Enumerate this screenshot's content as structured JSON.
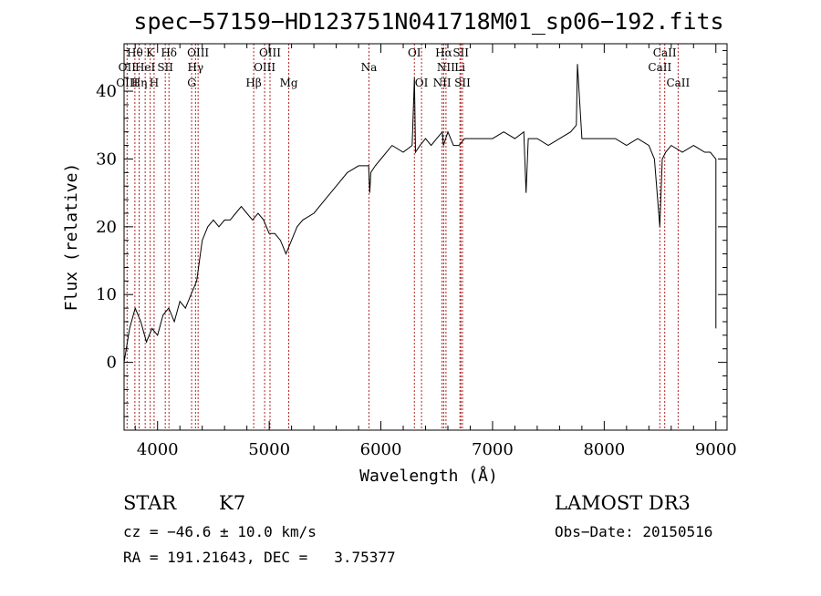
{
  "colors": {
    "spectrum": "#000000",
    "line_marker": "#b22222",
    "axis": "#000000",
    "background": "#ffffff"
  },
  "chart_data": {
    "type": "line",
    "title": "spec−57159−HD123751N041718M01_sp06−192.fits",
    "xlabel": "Wavelength (Å)",
    "ylabel": "Flux (relative)",
    "xlim": [
      3700,
      9100
    ],
    "ylim": [
      -10,
      47
    ],
    "xticks": [
      4000,
      5000,
      6000,
      7000,
      8000,
      9000
    ],
    "xtick_labels": [
      "4000",
      "5000",
      "6000",
      "7000",
      "8000",
      "9000"
    ],
    "yticks": [
      0,
      10,
      20,
      30,
      40
    ],
    "ytick_labels": [
      "0",
      "10",
      "20",
      "30",
      "40"
    ],
    "series": [
      {
        "name": "spectrum",
        "x": [
          3700,
          3750,
          3800,
          3850,
          3900,
          3950,
          4000,
          4050,
          4100,
          4150,
          4200,
          4250,
          4300,
          4350,
          4400,
          4450,
          4500,
          4550,
          4600,
          4650,
          4700,
          4750,
          4800,
          4850,
          4900,
          4950,
          5000,
          5050,
          5100,
          5150,
          5200,
          5250,
          5300,
          5400,
          5500,
          5600,
          5700,
          5800,
          5850,
          5890,
          5900,
          5910,
          5950,
          6000,
          6100,
          6200,
          6280,
          6300,
          6310,
          6350,
          6400,
          6450,
          6500,
          6550,
          6560,
          6600,
          6650,
          6700,
          6750,
          6800,
          6900,
          7000,
          7100,
          7200,
          7280,
          7300,
          7320,
          7400,
          7500,
          7600,
          7700,
          7750,
          7760,
          7800,
          7900,
          8000,
          8100,
          8200,
          8300,
          8400,
          8450,
          8498,
          8520,
          8550,
          8600,
          8700,
          8800,
          8900,
          8950,
          9000,
          9020
        ],
        "y": [
          0,
          5,
          8,
          6,
          3,
          5,
          4,
          7,
          8,
          6,
          9,
          8,
          10,
          12,
          18,
          20,
          21,
          20,
          21,
          21,
          22,
          23,
          22,
          21,
          22,
          21,
          19,
          19,
          18,
          16,
          18,
          20,
          21,
          22,
          24,
          26,
          28,
          29,
          29,
          29,
          25,
          28,
          29,
          30,
          32,
          31,
          32,
          42,
          31,
          32,
          33,
          32,
          33,
          34,
          32,
          34,
          32,
          32,
          33,
          33,
          33,
          33,
          34,
          33,
          34,
          25,
          33,
          33,
          32,
          33,
          34,
          35,
          44,
          33,
          33,
          33,
          33,
          32,
          33,
          32,
          30,
          20,
          30,
          31,
          32,
          31,
          32,
          31,
          31,
          30,
          5
        ]
      }
    ],
    "lines": [
      {
        "label": "Hθ",
        "wavelength": 3797,
        "level": 0
      },
      {
        "label": "OII",
        "wavelength": 3727,
        "level": 1
      },
      {
        "label": "OIII",
        "wavelength": 3727,
        "level": 2
      },
      {
        "label": "K",
        "wavelength": 3934,
        "level": 0
      },
      {
        "label": "HeI",
        "wavelength": 3889,
        "level": 1
      },
      {
        "label": "Hη",
        "wavelength": 3835,
        "level": 2
      },
      {
        "label": "SII",
        "wavelength": 4069,
        "level": 1
      },
      {
        "label": "H",
        "wavelength": 3969,
        "level": 2
      },
      {
        "label": "Hδ",
        "wavelength": 4102,
        "level": 0
      },
      {
        "label": "OIII",
        "wavelength": 4363,
        "level": 0
      },
      {
        "label": "Hγ",
        "wavelength": 4340,
        "level": 1
      },
      {
        "label": "G",
        "wavelength": 4305,
        "level": 2
      },
      {
        "label": "Hβ",
        "wavelength": 4861,
        "level": 2
      },
      {
        "label": "OIII",
        "wavelength": 5007,
        "level": 0
      },
      {
        "label": "OIII",
        "wavelength": 4959,
        "level": 1
      },
      {
        "label": "Mg",
        "wavelength": 5175,
        "level": 2
      },
      {
        "label": "Na",
        "wavelength": 5893,
        "level": 1
      },
      {
        "label": "OI",
        "wavelength": 6300,
        "level": 0
      },
      {
        "label": "OI",
        "wavelength": 6364,
        "level": 2
      },
      {
        "label": "Hα",
        "wavelength": 6563,
        "level": 0
      },
      {
        "label": "SII",
        "wavelength": 6716,
        "level": 0
      },
      {
        "label": "NII",
        "wavelength": 6583,
        "level": 1
      },
      {
        "label": "Li",
        "wavelength": 6708,
        "level": 1
      },
      {
        "label": "NII",
        "wavelength": 6548,
        "level": 2
      },
      {
        "label": "SII",
        "wavelength": 6731,
        "level": 2
      },
      {
        "label": "CaII",
        "wavelength": 8542,
        "level": 0
      },
      {
        "label": "CaII",
        "wavelength": 8498,
        "level": 1
      },
      {
        "label": "CaII",
        "wavelength": 8662,
        "level": 2
      }
    ]
  },
  "info": {
    "class_label": "STAR",
    "subclass": "K7",
    "survey": "LAMOST DR3",
    "cz": "cz = −46.6 ± 10.0 km/s",
    "obs_date": "Obs−Date: 20150516",
    "radec": "RA = 191.21643, DEC =   3.75377"
  }
}
